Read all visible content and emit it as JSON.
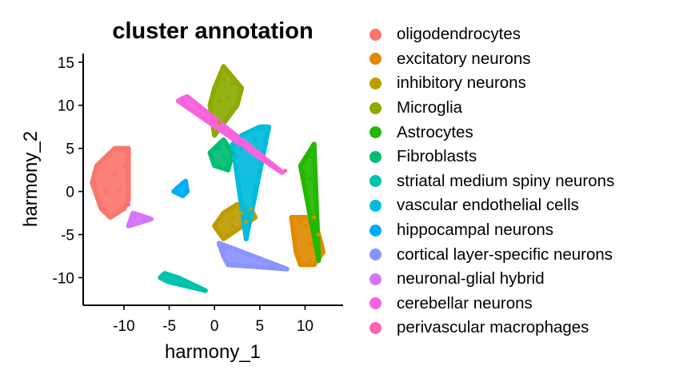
{
  "chart_data": {
    "type": "scatter",
    "title": "cluster annotation",
    "xlabel": "harmony_1",
    "ylabel": "harmony_2",
    "xlim": [
      -14.5,
      14.2
    ],
    "ylim": [
      -13.2,
      16.0
    ],
    "xticks": [
      -10,
      -5,
      0,
      5,
      10
    ],
    "yticks": [
      -10,
      -5,
      0,
      5,
      10,
      15
    ],
    "grid": false,
    "legend_position": "right",
    "series": [
      {
        "name": "oligodendrocytes",
        "color": "#F8766D",
        "points": [
          [
            -13.5,
            1
          ],
          [
            -13,
            3
          ],
          [
            -12.5,
            -2
          ],
          [
            -12,
            4
          ],
          [
            -12,
            0
          ],
          [
            -11.5,
            -3
          ],
          [
            -11,
            2
          ],
          [
            -11,
            5
          ],
          [
            -10.5,
            0
          ],
          [
            -10,
            -2
          ],
          [
            -9.5,
            5
          ],
          [
            -9.5,
            -1
          ],
          [
            -10,
            3
          ]
        ]
      },
      {
        "name": "excitatory neurons",
        "color": "#E18A00",
        "points": [
          [
            8.5,
            -3
          ],
          [
            9,
            -5
          ],
          [
            9,
            -7
          ],
          [
            9.5,
            -8.5
          ],
          [
            10,
            -4
          ],
          [
            10.5,
            -6
          ],
          [
            11,
            -3
          ],
          [
            11.5,
            -5
          ],
          [
            12,
            -7
          ],
          [
            10.5,
            -8
          ],
          [
            9.5,
            -3.5
          ],
          [
            11,
            -8.5
          ]
        ]
      },
      {
        "name": "inhibitory neurons",
        "color": "#BE9C00",
        "points": [
          [
            0,
            -4
          ],
          [
            1,
            -2.5
          ],
          [
            1.5,
            -5
          ],
          [
            2,
            -3
          ],
          [
            2.5,
            -1.5
          ],
          [
            3,
            -2.5
          ],
          [
            3.5,
            -3.5
          ],
          [
            4,
            -2
          ],
          [
            4.5,
            -3
          ],
          [
            1,
            -5.5
          ],
          [
            2,
            -4
          ]
        ]
      },
      {
        "name": "Microglia",
        "color": "#8CAB00",
        "points": [
          [
            -0.5,
            10
          ],
          [
            0,
            12
          ],
          [
            0.5,
            10.5
          ],
          [
            1,
            13
          ],
          [
            1.5,
            11
          ],
          [
            2,
            12.5
          ],
          [
            2.5,
            10
          ],
          [
            3,
            12
          ],
          [
            1,
            14.5
          ],
          [
            0.5,
            8
          ],
          [
            0,
            6.5
          ]
        ]
      },
      {
        "name": "Astrocytes",
        "color": "#24B700",
        "points": [
          [
            9.5,
            3
          ],
          [
            10,
            2
          ],
          [
            10.5,
            4
          ],
          [
            11,
            3
          ],
          [
            11,
            5.5
          ],
          [
            10,
            3.5
          ],
          [
            10.5,
            1.5
          ],
          [
            11.5,
            -8
          ]
        ]
      },
      {
        "name": "Fibroblasts",
        "color": "#00BE70",
        "points": [
          [
            -0.5,
            4.5
          ],
          [
            0,
            3
          ],
          [
            0.5,
            5
          ],
          [
            1,
            4
          ],
          [
            1.5,
            2.5
          ],
          [
            2,
            4.5
          ],
          [
            1,
            6
          ]
        ]
      },
      {
        "name": "striatal medium spiny neurons",
        "color": "#00C1AB",
        "points": [
          [
            -6,
            -10
          ],
          [
            -5,
            -10.5
          ],
          [
            -4,
            -10
          ],
          [
            -3,
            -10.5
          ],
          [
            -2,
            -11
          ],
          [
            -1,
            -11.5
          ],
          [
            -5.5,
            -9.5
          ],
          [
            -3.5,
            -10.8
          ]
        ]
      },
      {
        "name": "vascular endothelial cells",
        "color": "#00BBDA",
        "points": [
          [
            2,
            5.5
          ],
          [
            3,
            6.5
          ],
          [
            4,
            7
          ],
          [
            5,
            7.5
          ],
          [
            6,
            7.5
          ],
          [
            4.5,
            6
          ],
          [
            3,
            5
          ],
          [
            3.5,
            -5.5
          ]
        ]
      },
      {
        "name": "hippocampal neurons",
        "color": "#00ACFC",
        "points": [
          [
            -4,
            0.5
          ],
          [
            -3.5,
            -0.5
          ],
          [
            -3,
            0
          ],
          [
            -3.2,
            1.2
          ],
          [
            -4.5,
            0
          ]
        ]
      },
      {
        "name": "cortical layer-specific neurons",
        "color": "#8B93FF",
        "points": [
          [
            0.5,
            -6
          ],
          [
            1,
            -7.5
          ],
          [
            1.5,
            -8.5
          ],
          [
            1.2,
            -6.8
          ],
          [
            8,
            -9
          ]
        ]
      },
      {
        "name": "neuronal-glial hybrid",
        "color": "#D575FE",
        "points": [
          [
            -9,
            -2.5
          ],
          [
            -8,
            -3
          ],
          [
            -7,
            -3.2
          ],
          [
            -9.5,
            -4
          ]
        ]
      },
      {
        "name": "cerebellar neurons",
        "color": "#F962DD",
        "points": [
          [
            -4,
            10.5
          ],
          [
            -3,
            11
          ],
          [
            -3.5,
            10.8
          ],
          [
            7,
            2.5
          ],
          [
            7.5,
            2.2
          ]
        ]
      },
      {
        "name": "perivascular macrophages",
        "color": "#FF65AC",
        "points": [
          [
            -9.5,
            -1.5
          ],
          [
            7.8,
            2.4
          ]
        ]
      }
    ]
  }
}
